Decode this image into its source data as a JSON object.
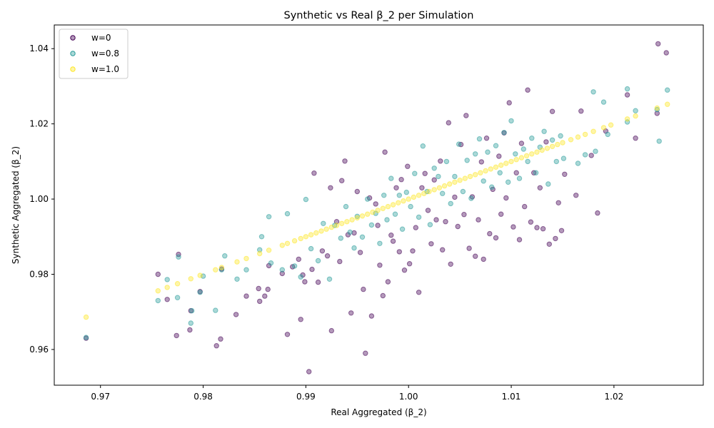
{
  "chart_data": {
    "type": "scatter",
    "title": "Synthetic vs Real β_2 per Simulation",
    "xlabel": "Real Aggregated (β_2)",
    "ylabel": "Synthetic Aggregated (β_2)",
    "xlim": [
      0.9655,
      1.0287
    ],
    "ylim": [
      0.9505,
      1.0463
    ],
    "xticks": [
      0.97,
      0.98,
      0.99,
      1.0,
      1.01,
      1.02
    ],
    "xtick_labels": [
      "0.97",
      "0.98",
      "0.99",
      "1.00",
      "1.01",
      "1.02"
    ],
    "yticks": [
      0.96,
      0.98,
      1.0,
      1.02,
      1.04
    ],
    "ytick_labels": [
      "0.96",
      "0.98",
      "1.00",
      "1.02",
      "1.04"
    ],
    "grid": false,
    "legend_position": "top-left",
    "series": [
      {
        "name": "w=0",
        "color": "#440154",
        "points": [
          [
            0.9686,
            0.963
          ],
          [
            0.9756,
            0.98
          ],
          [
            0.9765,
            0.9733
          ],
          [
            0.9774,
            0.9637
          ],
          [
            0.9776,
            0.9853
          ],
          [
            0.9787,
            0.9652
          ],
          [
            0.9788,
            0.9703
          ],
          [
            0.9797,
            0.9754
          ],
          [
            0.9813,
            0.961
          ],
          [
            0.9817,
            0.9628
          ],
          [
            0.9818,
            0.9814
          ],
          [
            0.9832,
            0.9693
          ],
          [
            0.9842,
            0.9742
          ],
          [
            0.9854,
            0.9762
          ],
          [
            0.9855,
            0.9728
          ],
          [
            0.986,
            0.9742
          ],
          [
            0.9863,
            0.976
          ],
          [
            0.9864,
            0.9823
          ],
          [
            0.9877,
            0.9802
          ],
          [
            0.9882,
            0.964
          ],
          [
            0.9887,
            0.982
          ],
          [
            0.9893,
            0.984
          ],
          [
            0.9895,
            0.968
          ],
          [
            0.9897,
            0.9798
          ],
          [
            0.9899,
            0.978
          ],
          [
            0.9903,
            0.9541
          ],
          [
            0.9906,
            0.9813
          ],
          [
            0.9908,
            1.0069
          ],
          [
            0.9912,
            0.9779
          ],
          [
            0.9916,
            0.9862
          ],
          [
            0.9921,
            0.9849
          ],
          [
            0.9924,
            1.003
          ],
          [
            0.9925,
            0.965
          ],
          [
            0.993,
            0.994
          ],
          [
            0.9933,
            0.9834
          ],
          [
            0.9935,
            1.0049
          ],
          [
            0.9938,
            1.0101
          ],
          [
            0.9941,
            0.9905
          ],
          [
            0.9944,
            0.9697
          ],
          [
            0.9947,
            0.991
          ],
          [
            0.995,
            1.002
          ],
          [
            0.9953,
            0.9858
          ],
          [
            0.9956,
            0.976
          ],
          [
            0.9958,
            0.959
          ],
          [
            0.9962,
            1.0003
          ],
          [
            0.9964,
            0.9689
          ],
          [
            0.9968,
            0.9987
          ],
          [
            0.997,
            0.993
          ],
          [
            0.9972,
            0.9824
          ],
          [
            0.9975,
            0.9743
          ],
          [
            0.9977,
            1.0125
          ],
          [
            0.998,
            0.978
          ],
          [
            0.9983,
            0.9904
          ],
          [
            0.9985,
            0.9888
          ],
          [
            0.9988,
            1.003
          ],
          [
            0.9991,
            0.986
          ],
          [
            0.9993,
            1.0052
          ],
          [
            0.9996,
            0.9811
          ],
          [
            0.9999,
            1.0087
          ],
          [
            1.0001,
            0.9828
          ],
          [
            1.0004,
            0.9862
          ],
          [
            1.0007,
            0.9924
          ],
          [
            1.001,
            0.9752
          ],
          [
            1.0013,
            1.003
          ],
          [
            1.0016,
            1.0068
          ],
          [
            1.0019,
            0.997
          ],
          [
            1.0022,
            0.9881
          ],
          [
            1.0025,
            1.0051
          ],
          [
            1.0027,
            0.9945
          ],
          [
            1.0031,
            1.0101
          ],
          [
            1.0033,
            0.9865
          ],
          [
            1.0036,
            0.994
          ],
          [
            1.0039,
            1.0203
          ],
          [
            1.0041,
            0.9827
          ],
          [
            1.0045,
            1.0005
          ],
          [
            1.0048,
            0.9927
          ],
          [
            1.0051,
            1.0145
          ],
          [
            1.0054,
            0.9959
          ],
          [
            1.0056,
            1.0222
          ],
          [
            1.0059,
            0.9869
          ],
          [
            1.0062,
            1.0006
          ],
          [
            1.0065,
            0.9848
          ],
          [
            1.0068,
            0.9945
          ],
          [
            1.0071,
            1.0099
          ],
          [
            1.0073,
            0.984
          ],
          [
            1.0076,
            1.0162
          ],
          [
            1.0079,
            0.9908
          ],
          [
            1.0082,
            1.0026
          ],
          [
            1.0085,
            0.9897
          ],
          [
            1.0088,
            1.0114
          ],
          [
            1.009,
            0.996
          ],
          [
            1.0093,
            1.0176
          ],
          [
            1.0095,
            1.0003
          ],
          [
            1.0098,
            1.0256
          ],
          [
            1.0102,
            0.9926
          ],
          [
            1.0105,
            1.007
          ],
          [
            1.0108,
            0.9892
          ],
          [
            1.011,
            1.0148
          ],
          [
            1.0113,
            0.998
          ],
          [
            1.0116,
            1.029
          ],
          [
            1.0119,
            0.9939
          ],
          [
            1.0122,
            1.007
          ],
          [
            1.0125,
            0.9924
          ],
          [
            1.0128,
            1.003
          ],
          [
            1.0131,
            0.9921
          ],
          [
            1.0134,
            1.0152
          ],
          [
            1.0137,
            0.988
          ],
          [
            1.014,
            1.0233
          ],
          [
            1.0143,
            0.9895
          ],
          [
            1.0146,
            0.999
          ],
          [
            1.0149,
            0.9916
          ],
          [
            1.0152,
            1.0066
          ],
          [
            1.0163,
            1.001
          ],
          [
            1.0168,
            1.0234
          ],
          [
            1.0178,
            1.0116
          ],
          [
            1.0184,
            0.9963
          ],
          [
            1.0192,
            1.0181
          ],
          [
            1.0213,
            1.0277
          ],
          [
            1.0221,
            1.0162
          ],
          [
            1.0242,
            1.0228
          ],
          [
            1.0243,
            1.0413
          ],
          [
            1.0251,
            1.0389
          ]
        ]
      },
      {
        "name": "w=0.8",
        "color": "#2a9d9a",
        "points": [
          [
            0.9686,
            0.9632
          ],
          [
            0.9756,
            0.973
          ],
          [
            0.9765,
            0.9786
          ],
          [
            0.9775,
            0.9738
          ],
          [
            0.9776,
            0.9846
          ],
          [
            0.9788,
            0.967
          ],
          [
            0.9789,
            0.9703
          ],
          [
            0.9797,
            0.9752
          ],
          [
            0.98,
            0.9795
          ],
          [
            0.9812,
            0.9704
          ],
          [
            0.9818,
            0.9812
          ],
          [
            0.9821,
            0.9849
          ],
          [
            0.9833,
            0.9787
          ],
          [
            0.9842,
            0.9812
          ],
          [
            0.9855,
            0.9865
          ],
          [
            0.9857,
            0.99
          ],
          [
            0.9864,
            0.9953
          ],
          [
            0.9866,
            0.983
          ],
          [
            0.9877,
            0.9812
          ],
          [
            0.9882,
            0.9961
          ],
          [
            0.9889,
            0.9822
          ],
          [
            0.9895,
            0.9793
          ],
          [
            0.99,
            0.9999
          ],
          [
            0.9905,
            0.9868
          ],
          [
            0.9912,
            0.9836
          ],
          [
            0.9917,
            0.9935
          ],
          [
            0.9923,
            0.9787
          ],
          [
            0.9928,
            0.993
          ],
          [
            0.9934,
            0.9896
          ],
          [
            0.9939,
            0.998
          ],
          [
            0.9943,
            0.9912
          ],
          [
            0.9947,
            0.987
          ],
          [
            0.995,
            0.9954
          ],
          [
            0.9955,
            0.9899
          ],
          [
            0.996,
            1.0
          ],
          [
            0.9964,
            0.9931
          ],
          [
            0.9968,
            0.9962
          ],
          [
            0.9972,
            0.9882
          ],
          [
            0.9976,
            1.001
          ],
          [
            0.9979,
            0.9945
          ],
          [
            0.9983,
            1.0055
          ],
          [
            0.9987,
            0.996
          ],
          [
            0.9991,
            1.001
          ],
          [
            0.9994,
            0.992
          ],
          [
            0.9998,
            1.0018
          ],
          [
            1.0002,
            0.998
          ],
          [
            1.0006,
            1.0068
          ],
          [
            1.001,
            0.9952
          ],
          [
            1.0014,
            1.0141
          ],
          [
            1.0018,
            1.002
          ],
          [
            1.0021,
            0.9932
          ],
          [
            1.0025,
            1.0082
          ],
          [
            1.0029,
            1.006
          ],
          [
            1.0033,
            1.0015
          ],
          [
            1.0037,
            1.01
          ],
          [
            1.0041,
            0.9988
          ],
          [
            1.0045,
            1.006
          ],
          [
            1.0049,
            1.0146
          ],
          [
            1.0053,
            1.002
          ],
          [
            1.0057,
            1.0103
          ],
          [
            1.0061,
            1.0002
          ],
          [
            1.0065,
            1.012
          ],
          [
            1.0069,
            1.016
          ],
          [
            1.0073,
            1.0048
          ],
          [
            1.0077,
            1.0125
          ],
          [
            1.0081,
            1.0032
          ],
          [
            1.0085,
            1.0142
          ],
          [
            1.0089,
            1.007
          ],
          [
            1.0093,
            1.0177
          ],
          [
            1.0097,
            1.0045
          ],
          [
            1.01,
            1.0208
          ],
          [
            1.0104,
            1.012
          ],
          [
            1.0108,
            1.0055
          ],
          [
            1.0112,
            1.0133
          ],
          [
            1.0116,
            1.01
          ],
          [
            1.012,
            1.0162
          ],
          [
            1.0124,
            1.007
          ],
          [
            1.0128,
            1.0138
          ],
          [
            1.0132,
            1.018
          ],
          [
            1.0136,
            1.004
          ],
          [
            1.014,
            1.0157
          ],
          [
            1.0144,
            1.01
          ],
          [
            1.0148,
            1.0168
          ],
          [
            1.0151,
            1.0108
          ],
          [
            1.0165,
            1.0095
          ],
          [
            1.0172,
            1.0118
          ],
          [
            1.018,
            1.0285
          ],
          [
            1.0182,
            1.0127
          ],
          [
            1.019,
            1.0258
          ],
          [
            1.0194,
            1.0172
          ],
          [
            1.0213,
            1.0293
          ],
          [
            1.0213,
            1.0205
          ],
          [
            1.0221,
            1.0235
          ],
          [
            1.0242,
            1.0238
          ],
          [
            1.0244,
            1.0154
          ],
          [
            1.0252,
            1.029
          ]
        ]
      },
      {
        "name": "w=1.0",
        "color": "#fde725",
        "points": [
          [
            0.9686,
            0.9686
          ],
          [
            0.9756,
            0.9756
          ],
          [
            0.9765,
            0.9765
          ],
          [
            0.9775,
            0.9775
          ],
          [
            0.9788,
            0.9788
          ],
          [
            0.9797,
            0.9797
          ],
          [
            0.9812,
            0.9812
          ],
          [
            0.9818,
            0.9818
          ],
          [
            0.9833,
            0.9833
          ],
          [
            0.9842,
            0.9842
          ],
          [
            0.9855,
            0.9855
          ],
          [
            0.9864,
            0.9864
          ],
          [
            0.9877,
            0.9877
          ],
          [
            0.9882,
            0.9882
          ],
          [
            0.9889,
            0.9889
          ],
          [
            0.9895,
            0.9895
          ],
          [
            0.99,
            0.99
          ],
          [
            0.9905,
            0.9905
          ],
          [
            0.991,
            0.991
          ],
          [
            0.9915,
            0.9915
          ],
          [
            0.992,
            0.992
          ],
          [
            0.9925,
            0.9925
          ],
          [
            0.993,
            0.993
          ],
          [
            0.9935,
            0.9935
          ],
          [
            0.994,
            0.994
          ],
          [
            0.9945,
            0.9945
          ],
          [
            0.995,
            0.995
          ],
          [
            0.9955,
            0.9955
          ],
          [
            0.996,
            0.996
          ],
          [
            0.9965,
            0.9965
          ],
          [
            0.997,
            0.997
          ],
          [
            0.9975,
            0.9975
          ],
          [
            0.998,
            0.998
          ],
          [
            0.9985,
            0.9985
          ],
          [
            0.999,
            0.999
          ],
          [
            0.9995,
            0.9995
          ],
          [
            1.0,
            1.0
          ],
          [
            1.0005,
            1.0005
          ],
          [
            1.001,
            1.001
          ],
          [
            1.0015,
            1.0015
          ],
          [
            1.002,
            1.002
          ],
          [
            1.0025,
            1.0025
          ],
          [
            1.003,
            1.003
          ],
          [
            1.0035,
            1.0035
          ],
          [
            1.004,
            1.004
          ],
          [
            1.0045,
            1.0045
          ],
          [
            1.005,
            1.005
          ],
          [
            1.0055,
            1.0055
          ],
          [
            1.006,
            1.006
          ],
          [
            1.0065,
            1.0065
          ],
          [
            1.007,
            1.007
          ],
          [
            1.0075,
            1.0075
          ],
          [
            1.008,
            1.008
          ],
          [
            1.0085,
            1.0085
          ],
          [
            1.009,
            1.009
          ],
          [
            1.0095,
            1.0095
          ],
          [
            1.01,
            1.01
          ],
          [
            1.0105,
            1.0105
          ],
          [
            1.011,
            1.011
          ],
          [
            1.0115,
            1.0115
          ],
          [
            1.012,
            1.012
          ],
          [
            1.0125,
            1.0125
          ],
          [
            1.013,
            1.013
          ],
          [
            1.0135,
            1.0135
          ],
          [
            1.014,
            1.014
          ],
          [
            1.0145,
            1.0145
          ],
          [
            1.015,
            1.015
          ],
          [
            1.0158,
            1.0158
          ],
          [
            1.0165,
            1.0165
          ],
          [
            1.0172,
            1.0172
          ],
          [
            1.018,
            1.018
          ],
          [
            1.019,
            1.019
          ],
          [
            1.0197,
            1.0197
          ],
          [
            1.0213,
            1.0213
          ],
          [
            1.0221,
            1.0221
          ],
          [
            1.0242,
            1.0242
          ],
          [
            1.0252,
            1.0252
          ]
        ]
      }
    ]
  }
}
